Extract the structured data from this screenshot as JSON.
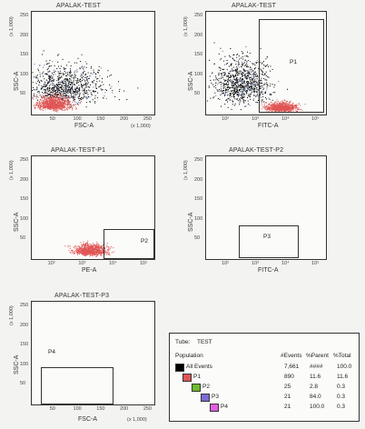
{
  "chart_data": [
    {
      "type": "scatter",
      "title": "APALAK-TEST",
      "xlabel": "FSC-A",
      "ylabel": "SSC-A",
      "x_unit": "(x 1,000)",
      "y_unit": "(x 1,000)",
      "xticks": [
        "50",
        "100",
        "150",
        "200",
        "250"
      ],
      "yticks": [
        "50",
        "100",
        "150",
        "200",
        "250"
      ],
      "xlim": [
        0,
        262
      ],
      "ylim": [
        0,
        262
      ],
      "gates": [],
      "populations": [
        {
          "name": "All Events",
          "color": "#000000",
          "center": [
            70,
            55
          ],
          "spread": [
            40,
            35
          ],
          "count": 7661
        },
        {
          "name": "P1",
          "color": "#e05555",
          "center": [
            45,
            22
          ],
          "spread": [
            18,
            12
          ],
          "count": 890
        }
      ]
    },
    {
      "type": "scatter",
      "title": "APALAK-TEST",
      "xlabel": "FITC-A",
      "ylabel": "SSC-A",
      "xscale": "log",
      "y_unit": "(x 1,000)",
      "xticks": [
        "10²",
        "10³",
        "10⁴",
        "10⁵"
      ],
      "yticks": [
        "50",
        "100",
        "150",
        "200",
        "250"
      ],
      "xlim_log": [
        1.3,
        5.3
      ],
      "ylim": [
        0,
        262
      ],
      "gates": [
        {
          "name": "P1"
        }
      ],
      "populations": [
        {
          "name": "All Events",
          "color": "#000000",
          "center_log": [
            2.5,
            60
          ],
          "spread": [
            0.45,
            40
          ],
          "count": 7661
        },
        {
          "name": "P1",
          "color": "#e05555",
          "center_log": [
            3.8,
            15
          ],
          "spread": [
            0.25,
            8
          ],
          "count": 890
        }
      ]
    },
    {
      "type": "scatter",
      "title": "APALAK-TEST-P1",
      "xlabel": "PE-A",
      "ylabel": "SSC-A",
      "xscale": "log",
      "y_unit": "(x 1,000)",
      "xticks": [
        "10²",
        "10³",
        "10⁴",
        "10⁵"
      ],
      "yticks": [
        "50",
        "100",
        "150",
        "200",
        "250"
      ],
      "xlim_log": [
        1.3,
        5.3
      ],
      "ylim": [
        0,
        262
      ],
      "gates": [
        {
          "name": "P2"
        }
      ],
      "populations": [
        {
          "name": "P1",
          "color": "#e05555",
          "center_log": [
            3.2,
            18
          ],
          "spread": [
            0.25,
            10
          ],
          "count": 890
        }
      ]
    },
    {
      "type": "scatter",
      "title": "APALAK-TEST-P2",
      "xlabel": "FITC-A",
      "ylabel": "SSC-A",
      "xscale": "log",
      "y_unit": "(x 1,000)",
      "xticks": [
        "10²",
        "10³",
        "10⁴",
        "10⁵"
      ],
      "yticks": [
        "50",
        "100",
        "150",
        "200",
        "250"
      ],
      "xlim_log": [
        1.3,
        5.3
      ],
      "ylim": [
        0,
        262
      ],
      "gates": [
        {
          "name": "P3"
        }
      ],
      "populations": []
    },
    {
      "type": "scatter",
      "title": "APALAK-TEST-P3",
      "xlabel": "FSC-A",
      "ylabel": "SSC-A",
      "x_unit": "(x 1,000)",
      "y_unit": "(x 1,000)",
      "xticks": [
        "50",
        "100",
        "150",
        "200",
        "250"
      ],
      "yticks": [
        "50",
        "100",
        "150",
        "200",
        "250"
      ],
      "xlim": [
        0,
        262
      ],
      "ylim": [
        0,
        262
      ],
      "gates": [
        {
          "name": "P4"
        }
      ],
      "populations": []
    }
  ],
  "legend_table": {
    "tube_label": "Tube:",
    "tube_name": "TEST",
    "headers": {
      "population": "Population",
      "events": "#Events",
      "parent": "%Parent",
      "total": "%Total"
    },
    "rows": [
      {
        "name": "All Events",
        "color": "#000000",
        "events": "7,661",
        "parent": "####",
        "total": "100.0"
      },
      {
        "name": "P1",
        "color": "#e05555",
        "events": "890",
        "parent": "11.6",
        "total": "11.6"
      },
      {
        "name": "P2",
        "color": "#6dbb2f",
        "events": "25",
        "parent": "2.8",
        "total": "0.3"
      },
      {
        "name": "P3",
        "color": "#7b6bd6",
        "events": "21",
        "parent": "84.0",
        "total": "0.3"
      },
      {
        "name": "P4",
        "color": "#e05ee0",
        "events": "21",
        "parent": "100.0",
        "total": "0.3"
      }
    ]
  }
}
